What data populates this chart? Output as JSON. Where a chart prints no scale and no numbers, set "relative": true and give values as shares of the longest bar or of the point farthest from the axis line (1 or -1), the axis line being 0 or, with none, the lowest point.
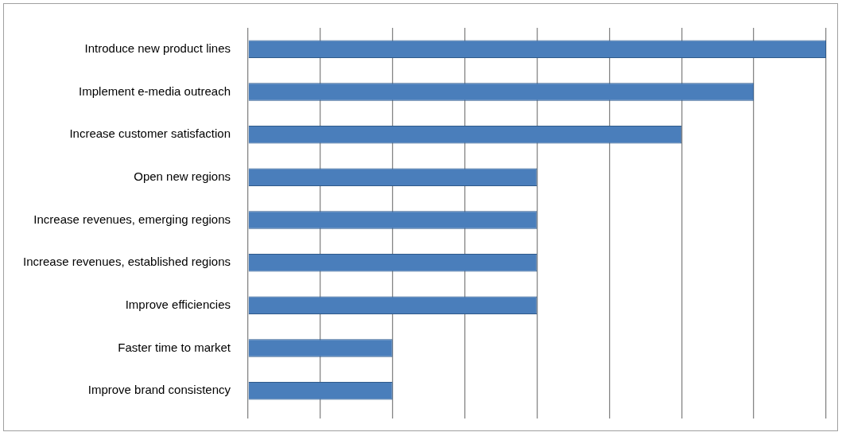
{
  "chart_data": {
    "type": "bar",
    "orientation": "horizontal",
    "relative": true,
    "grid": "x",
    "categories": [
      "Introduce new product lines",
      "Implement e-media outreach",
      "Increase customer satisfaction",
      "Open new regions",
      "Increase revenues, emerging regions",
      "Increase revenues, established regions",
      "Improve efficiencies",
      "Faster time to market",
      "Improve brand consistency"
    ],
    "values": [
      1,
      0.875,
      0.75,
      0.5,
      0.5,
      0.5,
      0.5,
      0.25,
      0.25
    ],
    "color": "#4a7ebb"
  }
}
